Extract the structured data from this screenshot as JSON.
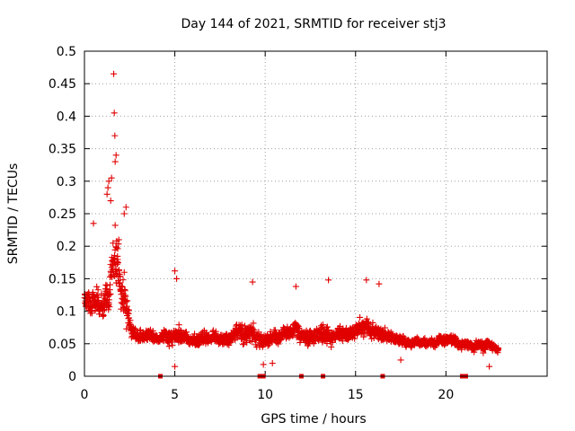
{
  "chart_data": {
    "type": "scatter",
    "title": "Day 144 of 2021, SRMTID for receiver stj3",
    "xlabel": "GPS time / hours",
    "ylabel": "SRMTID / TECUs",
    "xlim": [
      0,
      25.6
    ],
    "ylim": [
      0,
      0.5
    ],
    "grid": true,
    "marker": "+",
    "color": "#e00000",
    "x_ticks": [
      {
        "value": 0,
        "label": "0"
      },
      {
        "value": 5,
        "label": "5"
      },
      {
        "value": 10,
        "label": "10"
      },
      {
        "value": 15,
        "label": "15"
      },
      {
        "value": 20,
        "label": "20"
      }
    ],
    "y_ticks": [
      {
        "value": 0,
        "label": "0"
      },
      {
        "value": 0.05,
        "label": "0.05"
      },
      {
        "value": 0.1,
        "label": "0.1"
      },
      {
        "value": 0.15,
        "label": "0.15"
      },
      {
        "value": 0.2,
        "label": "0.2"
      },
      {
        "value": 0.25,
        "label": "0.25"
      },
      {
        "value": 0.3,
        "label": "0.3"
      },
      {
        "value": 0.35,
        "label": "0.35"
      },
      {
        "value": 0.4,
        "label": "0.4"
      },
      {
        "value": 0.45,
        "label": "0.45"
      },
      {
        "value": 0.5,
        "label": "0.5"
      }
    ],
    "envelope": {
      "x": [
        0,
        0.5,
        1.0,
        1.4,
        1.7,
        2.0,
        2.3,
        2.6,
        3.0,
        4.0,
        5.0,
        6.0,
        7.0,
        8.0,
        9.0,
        9.3,
        10.0,
        11.0,
        11.7,
        12.0,
        13.0,
        13.5,
        14.0,
        15.0,
        15.6,
        16.2,
        17.0,
        18.0,
        19.0,
        20.0,
        21.0,
        21.5,
        22.0,
        22.5,
        22.9
      ],
      "center": [
        0.12,
        0.115,
        0.105,
        0.12,
        0.2,
        0.14,
        0.11,
        0.075,
        0.06,
        0.06,
        0.062,
        0.055,
        0.058,
        0.06,
        0.07,
        0.065,
        0.055,
        0.06,
        0.065,
        0.06,
        0.06,
        0.065,
        0.06,
        0.065,
        0.075,
        0.07,
        0.06,
        0.05,
        0.05,
        0.055,
        0.05,
        0.045,
        0.05,
        0.05,
        0.04
      ],
      "spread": [
        0.03,
        0.045,
        0.055,
        0.07,
        0.12,
        0.09,
        0.06,
        0.03,
        0.02,
        0.02,
        0.035,
        0.02,
        0.025,
        0.025,
        0.04,
        0.035,
        0.025,
        0.025,
        0.035,
        0.025,
        0.03,
        0.035,
        0.025,
        0.03,
        0.035,
        0.03,
        0.02,
        0.015,
        0.015,
        0.02,
        0.015,
        0.015,
        0.02,
        0.02,
        0.01
      ]
    },
    "sample_count": 2100,
    "extremes": [
      {
        "x": 1.62,
        "y": 0.465
      },
      {
        "x": 1.65,
        "y": 0.405
      },
      {
        "x": 1.68,
        "y": 0.37
      },
      {
        "x": 1.75,
        "y": 0.34
      },
      {
        "x": 1.7,
        "y": 0.33
      },
      {
        "x": 1.35,
        "y": 0.3
      },
      {
        "x": 1.5,
        "y": 0.305
      },
      {
        "x": 2.3,
        "y": 0.26
      },
      {
        "x": 2.2,
        "y": 0.25
      },
      {
        "x": 0.5,
        "y": 0.235
      },
      {
        "x": 1.25,
        "y": 0.28
      },
      {
        "x": 1.3,
        "y": 0.29
      },
      {
        "x": 1.45,
        "y": 0.27
      },
      {
        "x": 1.9,
        "y": 0.21
      },
      {
        "x": 5.0,
        "y": 0.162
      },
      {
        "x": 5.1,
        "y": 0.15
      },
      {
        "x": 9.3,
        "y": 0.145
      },
      {
        "x": 11.7,
        "y": 0.138
      },
      {
        "x": 13.5,
        "y": 0.148
      },
      {
        "x": 15.6,
        "y": 0.148
      },
      {
        "x": 16.3,
        "y": 0.142
      },
      {
        "x": 9.9,
        "y": 0.018
      },
      {
        "x": 10.4,
        "y": 0.02
      },
      {
        "x": 5.0,
        "y": 0.015
      },
      {
        "x": 22.4,
        "y": 0.015
      },
      {
        "x": 17.5,
        "y": 0.025
      }
    ],
    "gaps_at_zero": [
      4.2,
      9.7,
      9.9,
      12.0,
      13.2,
      16.5,
      20.9,
      21.1
    ]
  }
}
